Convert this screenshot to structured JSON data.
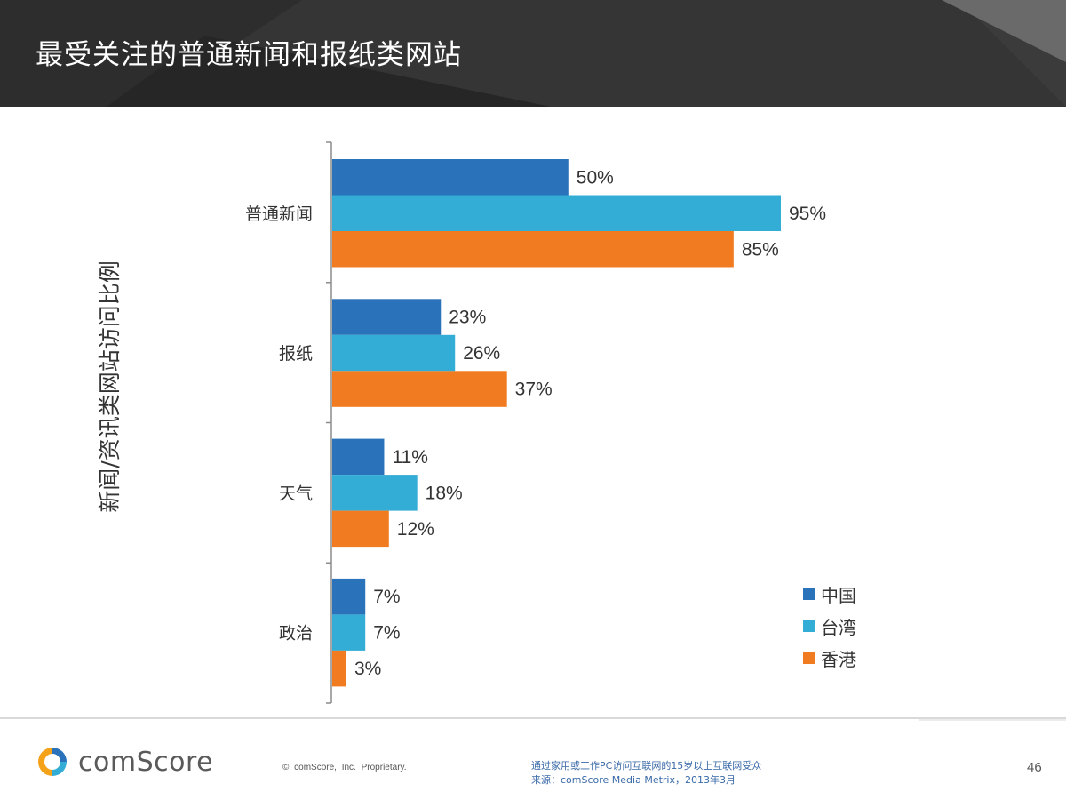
{
  "header": {
    "title": "最受关注的普通新闻和报纸类网站"
  },
  "colors": {
    "header_bg": "#2d2d2d",
    "china": "#2a72ba",
    "taiwan": "#33acd6",
    "hongkong": "#f07b20"
  },
  "chart_data": {
    "type": "bar",
    "orientation": "horizontal",
    "title": "",
    "ylabel": "新闻/资讯类网站访问比例",
    "xlabel": "",
    "categories": [
      "普通新闻",
      "报纸",
      "天气",
      "政治"
    ],
    "series": [
      {
        "name": "中国",
        "color": "#2a72ba",
        "values": [
          50,
          23,
          11,
          7
        ],
        "labels": [
          "50%",
          "23%",
          "11%",
          "7%"
        ]
      },
      {
        "name": "台湾",
        "color": "#33acd6",
        "values": [
          95,
          26,
          18,
          7
        ],
        "labels": [
          "95%",
          "26%",
          "18%",
          "7%"
        ]
      },
      {
        "name": "香港",
        "color": "#f07b20",
        "values": [
          85,
          37,
          12,
          3
        ],
        "labels": [
          "85%",
          "37%",
          "12%",
          "3%"
        ]
      }
    ],
    "xlim": [
      0,
      100
    ],
    "grid": false,
    "legend_position": "bottom-right"
  },
  "footer": {
    "logo_text": "comScore",
    "copyright": "© comScore, Inc.   Proprietary.",
    "note_line1": "通过家用或工作PC访问互联网的15岁以上互联网受众",
    "note_line2": "来源：comScore Media Metrix，2013年3月",
    "page_number": "46"
  }
}
